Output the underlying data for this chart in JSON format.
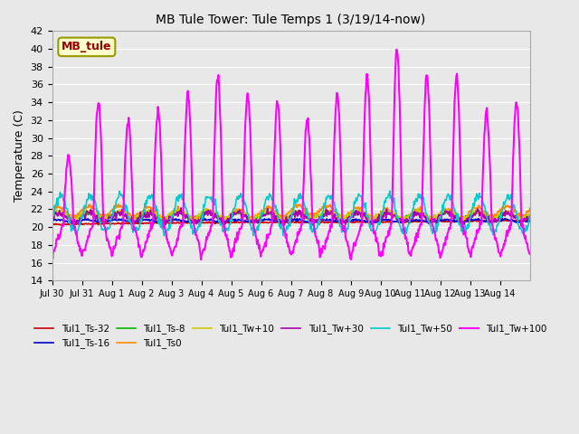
{
  "title": "MB Tule Tower: Tule Temps 1 (3/19/14-now)",
  "ylabel": "Temperature (C)",
  "ylim": [
    14,
    42
  ],
  "yticks": [
    14,
    16,
    18,
    20,
    22,
    24,
    26,
    28,
    30,
    32,
    34,
    36,
    38,
    40,
    42
  ],
  "series": [
    {
      "label": "Tul1_Ts-32",
      "color": "#cc0000",
      "lw": 1.2
    },
    {
      "label": "Tul1_Ts-16",
      "color": "#0000cc",
      "lw": 1.2
    },
    {
      "label": "Tul1_Ts-8",
      "color": "#00bb00",
      "lw": 1.2
    },
    {
      "label": "Tul1_Ts0",
      "color": "#ff8800",
      "lw": 1.2
    },
    {
      "label": "Tul1_Tw+10",
      "color": "#cccc00",
      "lw": 1.2
    },
    {
      "label": "Tul1_Tw+30",
      "color": "#aa00aa",
      "lw": 1.2
    },
    {
      "label": "Tul1_Tw+50",
      "color": "#00cccc",
      "lw": 1.2
    },
    {
      "label": "Tul1_Tw+100",
      "color": "#ff00ff",
      "lw": 1.5
    }
  ],
  "site_label": "MB_tule",
  "site_label_color": "#990000",
  "site_box_facecolor": "#ffffcc",
  "site_box_edgecolor": "#999900",
  "n_days": 16,
  "pts_per_day": 48,
  "day_labels": [
    "Jul 30",
    "Jul 31",
    "Aug 1",
    "Aug 2",
    "Aug 3",
    "Aug 4",
    "Aug 5",
    "Aug 6",
    "Aug 7",
    "Aug 8",
    "Aug 9",
    "Aug 10",
    "Aug 11",
    "Aug 12",
    "Aug 13",
    "Aug 14"
  ]
}
